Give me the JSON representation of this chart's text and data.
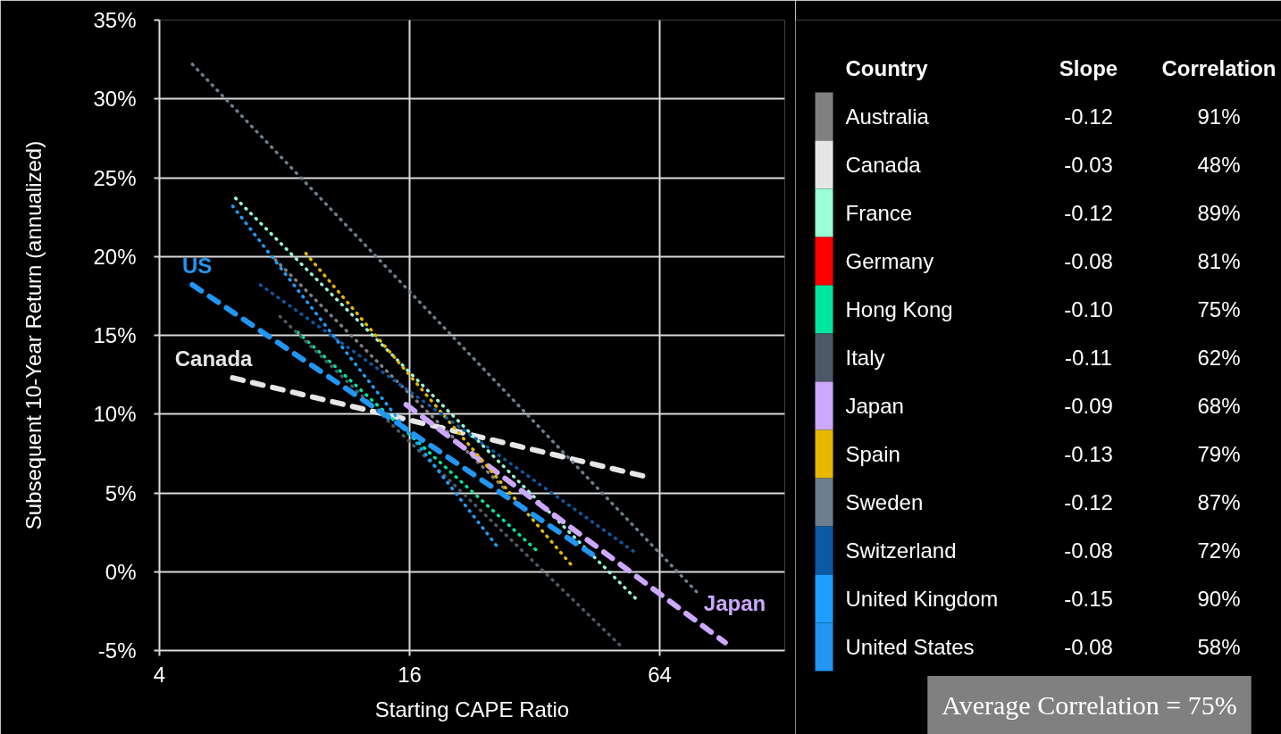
{
  "chart_data": {
    "type": "line",
    "xlabel": "Starting CAPE Ratio",
    "ylabel": "Subsequent 10-Year Return (annualized)",
    "legend_title": "Country",
    "log": "x",
    "xlim": [
      4,
      128
    ],
    "xticks": [
      4,
      16,
      64
    ],
    "ylim": [
      -5,
      35
    ],
    "yticks": [
      {
        "value": -5,
        "label": "-5%"
      },
      {
        "value": 0,
        "label": "0%"
      },
      {
        "value": 5,
        "label": "5%"
      },
      {
        "value": 10,
        "label": "10%"
      },
      {
        "value": 15,
        "label": "15%"
      },
      {
        "value": 20,
        "label": "20%"
      },
      {
        "value": 25,
        "label": "25%"
      },
      {
        "value": 30,
        "label": "30%"
      },
      {
        "value": 35,
        "label": "35%"
      }
    ],
    "grid": true,
    "legend": "right",
    "line_style": "dotted",
    "series": [
      {
        "name": "Australia",
        "color": "#808080",
        "x": [
          7.6,
          27
        ],
        "values": [
          19.8,
          5.3
        ]
      },
      {
        "name": "Canada",
        "color": "#e6e6e6",
        "x": [
          6.0,
          60
        ],
        "values": [
          12.3,
          6.0
        ],
        "line_style": "dashed"
      },
      {
        "name": "France",
        "color": "#99ffd6",
        "x": [
          6.1,
          57
        ],
        "values": [
          23.7,
          -1.9
        ]
      },
      {
        "name": "Germany",
        "color": "#ff0000",
        "values": [
          null
        ]
      },
      {
        "name": "Hong Kong",
        "color": "#00e6a0",
        "x": [
          8.6,
          32.5
        ],
        "values": [
          15.2,
          1.3
        ]
      },
      {
        "name": "Italy",
        "color": "#4d5966",
        "x": [
          7.8,
          52
        ],
        "values": [
          16.2,
          -4.8
        ]
      },
      {
        "name": "Japan",
        "color": "#cca8ff",
        "x": [
          15.7,
          92
        ],
        "values": [
          10.6,
          -4.5
        ],
        "line_style": "dashed"
      },
      {
        "name": "Spain",
        "color": "#e6b800",
        "x": [
          9.0,
          39.6
        ],
        "values": [
          20.2,
          0.3
        ]
      },
      {
        "name": "Sweden",
        "color": "#6b7f8e",
        "x": [
          4.8,
          80
        ],
        "values": [
          32.2,
          -1.5
        ]
      },
      {
        "name": "Switzerland",
        "color": "#0b5aa5",
        "x": [
          7.0,
          56
        ],
        "values": [
          18.2,
          1.2
        ]
      },
      {
        "name": "United Kingdom",
        "color": "#1e9fff",
        "x": [
          6.0,
          26
        ],
        "values": [
          23.2,
          1.6
        ]
      },
      {
        "name": "United States",
        "color": "#2196f3",
        "x": [
          4.8,
          44
        ],
        "values": [
          18.2,
          1.1
        ],
        "line_style": "dashed"
      }
    ],
    "annotations": [
      "Slope",
      "Correlation",
      "-0.12",
      "91%",
      "-0.03",
      "48%",
      "-0.12",
      "89%",
      "-0.08",
      "81%",
      "-0.10",
      "75%",
      "-0.11",
      "62%",
      "-0.09",
      "68%",
      "-0.13",
      "79%",
      "-0.12",
      "87%",
      "-0.08",
      "72%",
      "-0.15",
      "90%",
      "-0.08",
      "58%",
      "Average Correlation = 75%",
      {
        "text": "US",
        "x": 4.8,
        "y": 18.2
      },
      {
        "text": "Canada",
        "x": 6.0,
        "y": 12.3
      },
      {
        "text": "Japan",
        "x": 92,
        "y": -4.5
      }
    ]
  }
}
